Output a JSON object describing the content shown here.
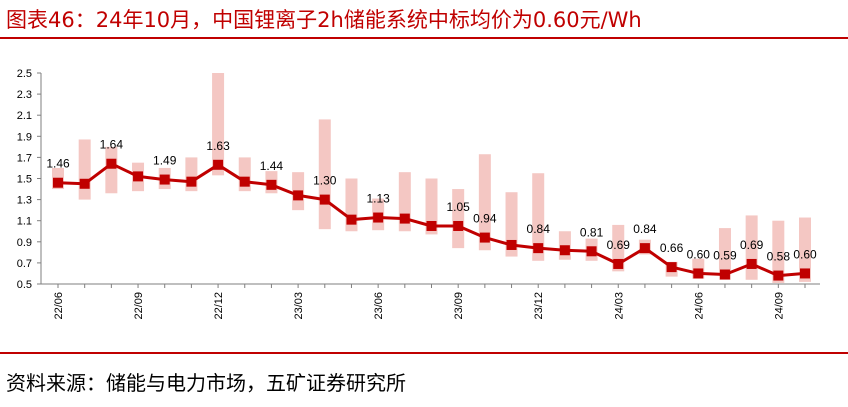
{
  "title": "图表46：24年10月，中国锂离子2h储能系统中标均价为0.60元/Wh",
  "source": "资料来源：储能与电力市场，五矿证券研究所",
  "colors": {
    "line": "#c00000",
    "band": "#f4c7c3",
    "title": "#c00000"
  },
  "chart_data": {
    "type": "line",
    "title": "图表46：24年10月，中国锂离子2h储能系统中标均价为0.60元/Wh",
    "xlabel": "",
    "ylabel": "",
    "ylim": [
      0.5,
      2.5
    ],
    "yticks": [
      "2.5",
      "2.3",
      "2.1",
      "1.9",
      "1.7",
      "1.5",
      "1.3",
      "1.1",
      "0.9",
      "0.7",
      "0.5"
    ],
    "xtick_labels": [
      "22/06",
      "22/09",
      "22/12",
      "23/03",
      "23/06",
      "23/09",
      "23/12",
      "24/03",
      "24/06",
      "24/09"
    ],
    "grid": false,
    "legend": "none",
    "x": [
      "22/06",
      "22/07",
      "22/08",
      "22/09",
      "22/10",
      "22/11",
      "22/12",
      "23/01",
      "23/02",
      "23/03",
      "23/04",
      "23/05",
      "23/06",
      "23/07",
      "23/08",
      "23/09",
      "23/10",
      "23/11",
      "23/12",
      "24/01",
      "24/02",
      "24/03",
      "24/04",
      "24/05",
      "24/06",
      "24/07",
      "24/08",
      "24/09",
      "24/10"
    ],
    "series": [
      {
        "type": "line",
        "values": [
          1.46,
          1.45,
          1.64,
          1.52,
          1.49,
          1.47,
          1.63,
          1.47,
          1.44,
          1.34,
          1.3,
          1.11,
          1.13,
          1.12,
          1.05,
          1.05,
          0.94,
          0.87,
          0.84,
          0.82,
          0.81,
          0.69,
          0.84,
          0.66,
          0.6,
          0.59,
          0.69,
          0.58,
          0.6
        ]
      },
      {
        "type": "range-band",
        "low": [
          1.4,
          1.3,
          1.36,
          1.38,
          1.4,
          1.38,
          1.53,
          1.38,
          1.36,
          1.2,
          1.02,
          1.0,
          1.01,
          1.0,
          0.97,
          0.84,
          0.82,
          0.76,
          0.72,
          0.73,
          0.72,
          0.62,
          0.78,
          0.57,
          0.55,
          0.54,
          0.54,
          0.51,
          0.52
        ],
        "high": [
          1.6,
          1.87,
          1.8,
          1.65,
          1.6,
          1.7,
          2.5,
          1.7,
          1.57,
          1.56,
          2.06,
          1.5,
          1.31,
          1.56,
          1.5,
          1.4,
          1.73,
          1.37,
          1.55,
          1.0,
          0.93,
          1.06,
          0.92,
          0.71,
          0.74,
          1.03,
          1.15,
          1.1,
          1.13
        ]
      }
    ],
    "data_labels": [
      {
        "index": 0,
        "text": "1.46"
      },
      {
        "index": 2,
        "text": "1.64"
      },
      {
        "index": 4,
        "text": "1.49"
      },
      {
        "index": 6,
        "text": "1.63"
      },
      {
        "index": 8,
        "text": "1.44"
      },
      {
        "index": 10,
        "text": "1.30"
      },
      {
        "index": 12,
        "text": "1.13"
      },
      {
        "index": 15,
        "text": "1.05"
      },
      {
        "index": 16,
        "text": "0.94"
      },
      {
        "index": 18,
        "text": "0.84"
      },
      {
        "index": 20,
        "text": "0.81"
      },
      {
        "index": 21,
        "text": "0.69"
      },
      {
        "index": 22,
        "text": "0.84"
      },
      {
        "index": 23,
        "text": "0.66"
      },
      {
        "index": 24,
        "text": "0.60"
      },
      {
        "index": 25,
        "text": "0.59"
      },
      {
        "index": 26,
        "text": "0.69"
      },
      {
        "index": 27,
        "text": "0.58"
      },
      {
        "index": 28,
        "text": "0.60"
      }
    ]
  }
}
